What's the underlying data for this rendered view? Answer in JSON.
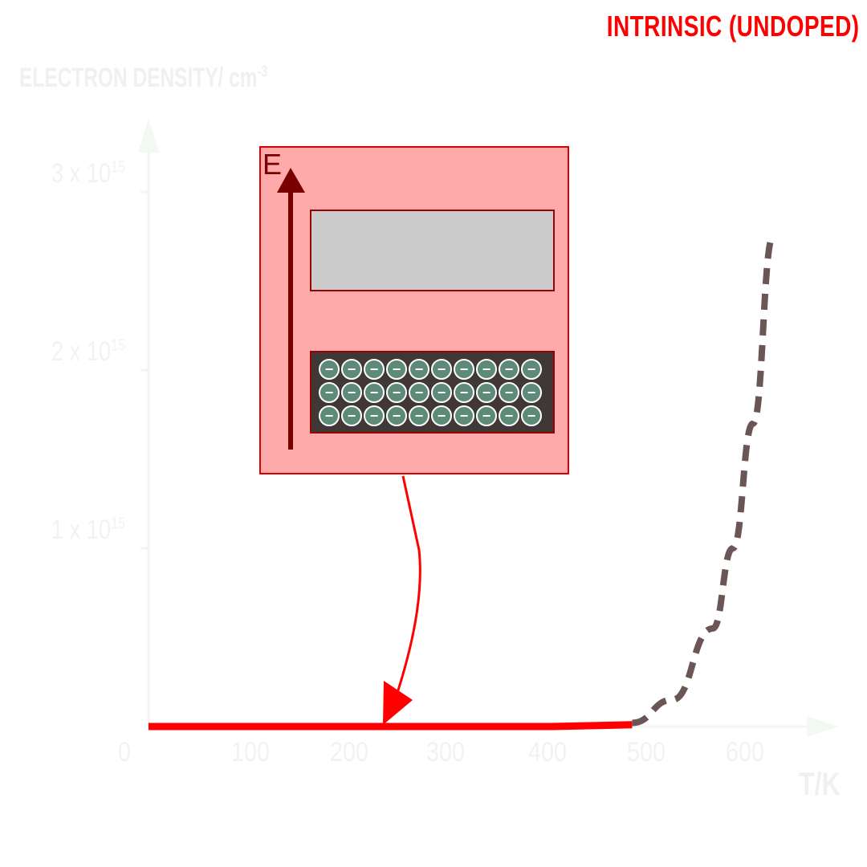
{
  "title": "INTRINSIC (UNDOPED)",
  "chart_data": {
    "type": "line",
    "ylabel_text": "ELECTRON DENSITY/ cm",
    "ylabel_exp": "-3",
    "xlabel": "T/K",
    "xlim": [
      0,
      700
    ],
    "ylim": [
      0,
      3000000000000000.0
    ],
    "x_ticks": [
      "0",
      "100",
      "200",
      "300",
      "400",
      "500",
      "600"
    ],
    "y_ticks": [
      {
        "base": "1 x 10",
        "exp": "15"
      },
      {
        "base": "2 x 10",
        "exp": "15"
      },
      {
        "base": "3 x 10",
        "exp": "15"
      }
    ],
    "series": [
      {
        "style": "solid",
        "color": "#ff0000",
        "x": [
          0,
          100,
          200,
          300,
          400,
          480
        ],
        "y": [
          0,
          0,
          0,
          0,
          0,
          10000000000000.0
        ]
      },
      {
        "style": "dashed",
        "color": "#6b5656",
        "x": [
          480,
          520,
          560,
          580,
          600,
          620
        ],
        "y": [
          20000000000000.0,
          150000000000000.0,
          550000000000000.0,
          1000000000000000.0,
          1700000000000000.0,
          2750000000000000.0
        ]
      }
    ]
  },
  "energy_diagram": {
    "axis_label": "E",
    "valence_band_electrons": 30,
    "electron_symbol": "−",
    "colors": {
      "box": "#ffaaaa",
      "conduction_band": "#cacbca",
      "valence_band": "#403737",
      "electron": "#5e8a7a",
      "arrow": "#7a0000"
    }
  }
}
